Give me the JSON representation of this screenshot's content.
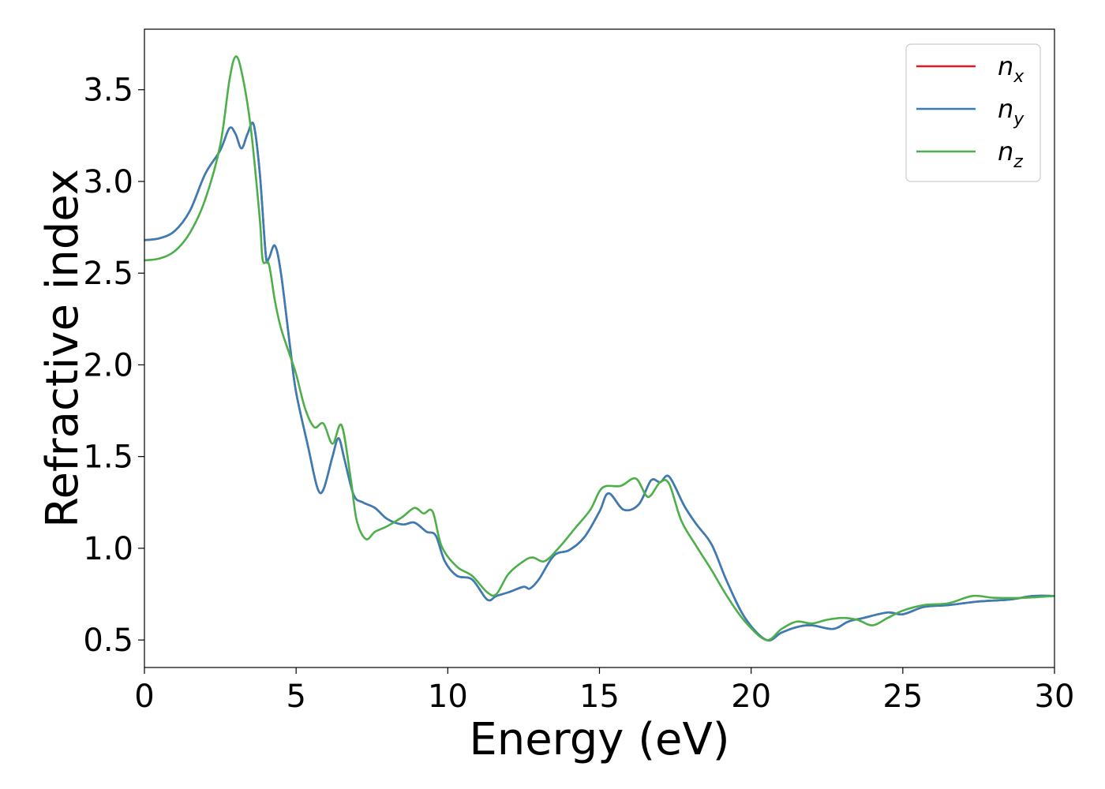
{
  "chart_data": {
    "type": "line",
    "xlabel": "Energy (eV)",
    "ylabel": "Refractive index",
    "xlim": [
      0,
      30
    ],
    "ylim": [
      0.35,
      3.83
    ],
    "xticks": [
      0,
      5,
      10,
      15,
      20,
      25,
      30
    ],
    "xtick_labels": [
      "0",
      "5",
      "10",
      "15",
      "20",
      "25",
      "30"
    ],
    "yticks": [
      0.5,
      1.0,
      1.5,
      2.0,
      2.5,
      3.0,
      3.5
    ],
    "ytick_labels": [
      "0.5",
      "1.0",
      "1.5",
      "2.0",
      "2.5",
      "3.0",
      "3.5"
    ],
    "grid": false,
    "legend_position": "top-right",
    "series": [
      {
        "name": "n",
        "subscript": "x",
        "color": "#e41a1c",
        "points": [
          [
            0,
            2.68
          ],
          [
            0.5,
            2.69
          ],
          [
            1,
            2.73
          ],
          [
            1.5,
            2.84
          ],
          [
            2,
            3.04
          ],
          [
            2.5,
            3.17
          ],
          [
            2.8,
            3.29
          ],
          [
            3,
            3.26
          ],
          [
            3.2,
            3.18
          ],
          [
            3.4,
            3.26
          ],
          [
            3.6,
            3.31
          ],
          [
            3.8,
            3.05
          ],
          [
            4,
            2.6
          ],
          [
            4.1,
            2.58
          ],
          [
            4.3,
            2.65
          ],
          [
            4.5,
            2.5
          ],
          [
            4.8,
            2.1
          ],
          [
            5,
            1.85
          ],
          [
            5.4,
            1.55
          ],
          [
            5.7,
            1.33
          ],
          [
            5.9,
            1.32
          ],
          [
            6.2,
            1.5
          ],
          [
            6.4,
            1.6
          ],
          [
            6.6,
            1.48
          ],
          [
            6.9,
            1.29
          ],
          [
            7.2,
            1.25
          ],
          [
            7.6,
            1.22
          ],
          [
            8,
            1.16
          ],
          [
            8.5,
            1.13
          ],
          [
            8.9,
            1.14
          ],
          [
            9.3,
            1.09
          ],
          [
            9.6,
            1.07
          ],
          [
            9.9,
            0.93
          ],
          [
            10.3,
            0.85
          ],
          [
            10.8,
            0.83
          ],
          [
            11.3,
            0.72
          ],
          [
            11.6,
            0.74
          ],
          [
            12,
            0.76
          ],
          [
            12.5,
            0.79
          ],
          [
            12.7,
            0.78
          ],
          [
            13,
            0.83
          ],
          [
            13.5,
            0.96
          ],
          [
            14,
            0.99
          ],
          [
            14.5,
            1.06
          ],
          [
            15,
            1.2
          ],
          [
            15.3,
            1.3
          ],
          [
            15.8,
            1.21
          ],
          [
            16.3,
            1.24
          ],
          [
            16.7,
            1.37
          ],
          [
            17,
            1.36
          ],
          [
            17.3,
            1.39
          ],
          [
            17.8,
            1.23
          ],
          [
            18.2,
            1.13
          ],
          [
            18.7,
            1.02
          ],
          [
            19.2,
            0.82
          ],
          [
            19.8,
            0.62
          ],
          [
            20.5,
            0.5
          ],
          [
            21,
            0.54
          ],
          [
            21.5,
            0.57
          ],
          [
            22,
            0.58
          ],
          [
            22.7,
            0.56
          ],
          [
            23.2,
            0.6
          ],
          [
            23.7,
            0.62
          ],
          [
            24.5,
            0.65
          ],
          [
            25,
            0.64
          ],
          [
            25.7,
            0.68
          ],
          [
            26.5,
            0.69
          ],
          [
            27.5,
            0.71
          ],
          [
            28.5,
            0.72
          ],
          [
            29.3,
            0.74
          ],
          [
            30,
            0.74
          ]
        ]
      },
      {
        "name": "n",
        "subscript": "y",
        "color": "#377eb8",
        "points": [
          [
            0,
            2.68
          ],
          [
            0.5,
            2.69
          ],
          [
            1,
            2.73
          ],
          [
            1.5,
            2.84
          ],
          [
            2,
            3.04
          ],
          [
            2.5,
            3.17
          ],
          [
            2.8,
            3.29
          ],
          [
            3,
            3.26
          ],
          [
            3.2,
            3.18
          ],
          [
            3.4,
            3.26
          ],
          [
            3.6,
            3.31
          ],
          [
            3.8,
            3.05
          ],
          [
            4,
            2.6
          ],
          [
            4.1,
            2.58
          ],
          [
            4.3,
            2.65
          ],
          [
            4.5,
            2.5
          ],
          [
            4.8,
            2.1
          ],
          [
            5,
            1.85
          ],
          [
            5.4,
            1.55
          ],
          [
            5.7,
            1.33
          ],
          [
            5.9,
            1.32
          ],
          [
            6.2,
            1.5
          ],
          [
            6.4,
            1.6
          ],
          [
            6.6,
            1.48
          ],
          [
            6.9,
            1.29
          ],
          [
            7.2,
            1.25
          ],
          [
            7.6,
            1.22
          ],
          [
            8,
            1.16
          ],
          [
            8.5,
            1.13
          ],
          [
            8.9,
            1.14
          ],
          [
            9.3,
            1.09
          ],
          [
            9.6,
            1.07
          ],
          [
            9.9,
            0.93
          ],
          [
            10.3,
            0.85
          ],
          [
            10.8,
            0.83
          ],
          [
            11.3,
            0.72
          ],
          [
            11.6,
            0.74
          ],
          [
            12,
            0.76
          ],
          [
            12.5,
            0.79
          ],
          [
            12.7,
            0.78
          ],
          [
            13,
            0.83
          ],
          [
            13.5,
            0.96
          ],
          [
            14,
            0.99
          ],
          [
            14.5,
            1.06
          ],
          [
            15,
            1.2
          ],
          [
            15.3,
            1.3
          ],
          [
            15.8,
            1.21
          ],
          [
            16.3,
            1.24
          ],
          [
            16.7,
            1.37
          ],
          [
            17,
            1.36
          ],
          [
            17.3,
            1.39
          ],
          [
            17.8,
            1.23
          ],
          [
            18.2,
            1.13
          ],
          [
            18.7,
            1.02
          ],
          [
            19.2,
            0.82
          ],
          [
            19.8,
            0.62
          ],
          [
            20.5,
            0.5
          ],
          [
            21,
            0.54
          ],
          [
            21.5,
            0.57
          ],
          [
            22,
            0.58
          ],
          [
            22.7,
            0.56
          ],
          [
            23.2,
            0.6
          ],
          [
            23.7,
            0.62
          ],
          [
            24.5,
            0.65
          ],
          [
            25,
            0.64
          ],
          [
            25.7,
            0.68
          ],
          [
            26.5,
            0.69
          ],
          [
            27.5,
            0.71
          ],
          [
            28.5,
            0.72
          ],
          [
            29.3,
            0.74
          ],
          [
            30,
            0.74
          ]
        ]
      },
      {
        "name": "n",
        "subscript": "z",
        "color": "#4daf4a",
        "points": [
          [
            0,
            2.57
          ],
          [
            0.5,
            2.58
          ],
          [
            1,
            2.62
          ],
          [
            1.5,
            2.72
          ],
          [
            2,
            2.9
          ],
          [
            2.5,
            3.2
          ],
          [
            2.8,
            3.55
          ],
          [
            3,
            3.68
          ],
          [
            3.2,
            3.6
          ],
          [
            3.5,
            3.3
          ],
          [
            3.8,
            2.8
          ],
          [
            3.9,
            2.57
          ],
          [
            4.1,
            2.55
          ],
          [
            4.3,
            2.35
          ],
          [
            4.5,
            2.2
          ],
          [
            4.8,
            2.05
          ],
          [
            5,
            1.95
          ],
          [
            5.3,
            1.76
          ],
          [
            5.6,
            1.66
          ],
          [
            5.9,
            1.68
          ],
          [
            6.2,
            1.57
          ],
          [
            6.5,
            1.67
          ],
          [
            6.8,
            1.38
          ],
          [
            7,
            1.15
          ],
          [
            7.3,
            1.05
          ],
          [
            7.6,
            1.09
          ],
          [
            8,
            1.12
          ],
          [
            8.5,
            1.17
          ],
          [
            8.9,
            1.22
          ],
          [
            9.2,
            1.19
          ],
          [
            9.5,
            1.2
          ],
          [
            9.8,
            1.01
          ],
          [
            10.3,
            0.9
          ],
          [
            10.8,
            0.85
          ],
          [
            11.3,
            0.76
          ],
          [
            11.6,
            0.75
          ],
          [
            12,
            0.86
          ],
          [
            12.5,
            0.93
          ],
          [
            12.8,
            0.95
          ],
          [
            13.2,
            0.93
          ],
          [
            13.7,
            1.01
          ],
          [
            14.2,
            1.11
          ],
          [
            14.7,
            1.21
          ],
          [
            15.1,
            1.33
          ],
          [
            15.7,
            1.34
          ],
          [
            16.2,
            1.38
          ],
          [
            16.6,
            1.28
          ],
          [
            17,
            1.36
          ],
          [
            17.3,
            1.35
          ],
          [
            17.7,
            1.15
          ],
          [
            18.2,
            1.01
          ],
          [
            18.7,
            0.88
          ],
          [
            19.2,
            0.74
          ],
          [
            19.8,
            0.6
          ],
          [
            20.5,
            0.5
          ],
          [
            21,
            0.56
          ],
          [
            21.5,
            0.6
          ],
          [
            22,
            0.59
          ],
          [
            22.5,
            0.61
          ],
          [
            23,
            0.62
          ],
          [
            23.5,
            0.61
          ],
          [
            24,
            0.58
          ],
          [
            24.5,
            0.62
          ],
          [
            25,
            0.66
          ],
          [
            25.7,
            0.69
          ],
          [
            26.5,
            0.7
          ],
          [
            27.3,
            0.74
          ],
          [
            28,
            0.73
          ],
          [
            29,
            0.73
          ],
          [
            30,
            0.74
          ]
        ]
      }
    ]
  }
}
